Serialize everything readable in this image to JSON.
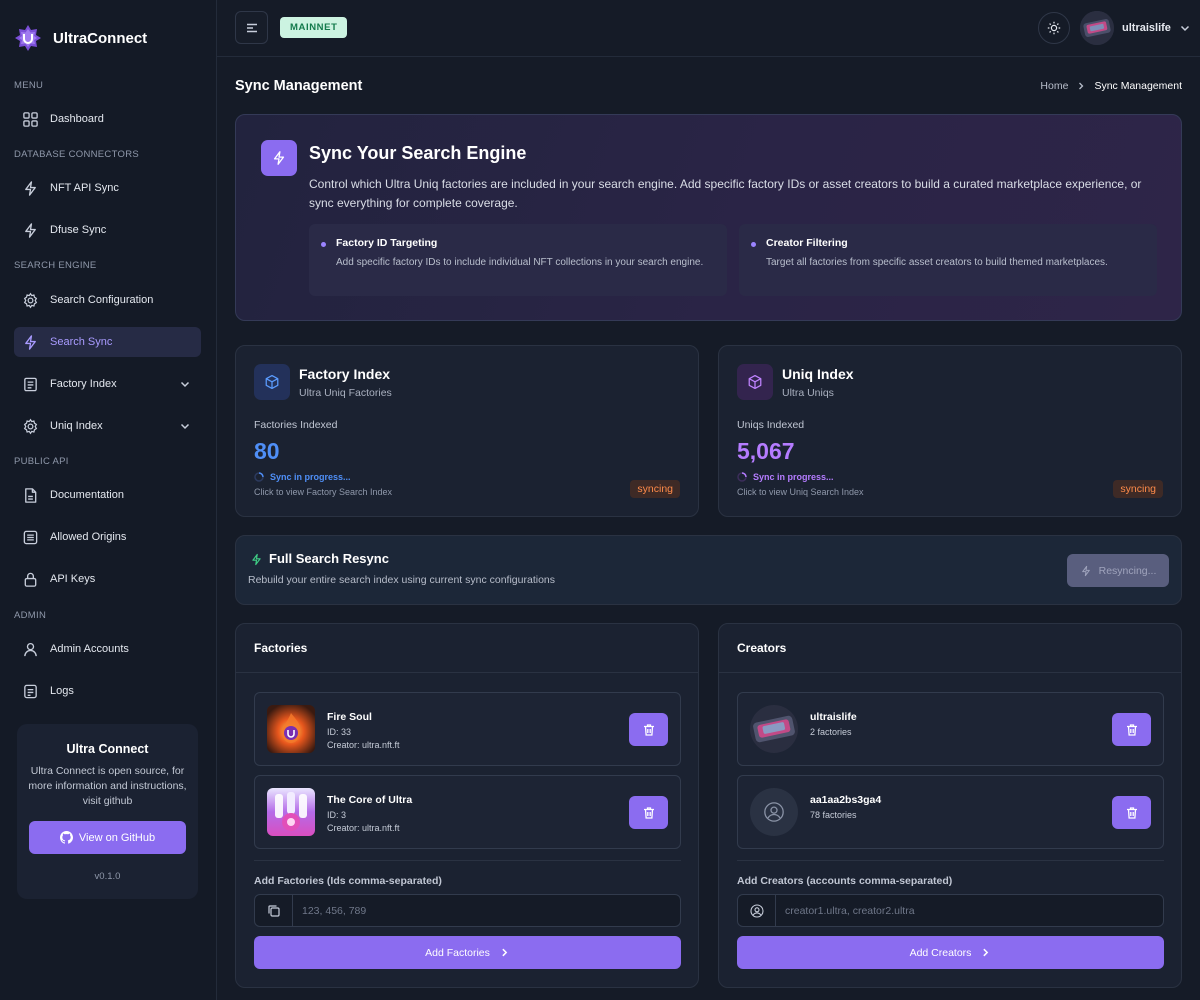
{
  "brand": {
    "name": "UltraConnect"
  },
  "sidebar": {
    "sections": [
      {
        "title": "MENU"
      },
      {
        "title": "DATABASE CONNECTORS"
      },
      {
        "title": "SEARCH ENGINE"
      },
      {
        "title": "PUBLIC API"
      },
      {
        "title": "ADMIN"
      }
    ],
    "items": [
      {
        "label": "Dashboard",
        "icon": "grid-icon"
      },
      {
        "label": "NFT API Sync",
        "icon": "bolt-icon"
      },
      {
        "label": "Dfuse Sync",
        "icon": "bolt-icon"
      },
      {
        "label": "Search Configuration",
        "icon": "gear-icon"
      },
      {
        "label": "Search Sync",
        "icon": "bolt-icon",
        "active": true
      },
      {
        "label": "Factory Index",
        "icon": "document-icon",
        "expandable": true
      },
      {
        "label": "Uniq Index",
        "icon": "gear-icon",
        "expandable": true
      },
      {
        "label": "Documentation",
        "icon": "file-icon"
      },
      {
        "label": "Allowed Origins",
        "icon": "list-icon"
      },
      {
        "label": "API Keys",
        "icon": "lock-icon"
      },
      {
        "label": "Admin Accounts",
        "icon": "user-icon"
      },
      {
        "label": "Logs",
        "icon": "log-icon"
      }
    ],
    "promo": {
      "title": "Ultra Connect",
      "text": "Ultra Connect is open source, for more information and instructions, visit github",
      "button": "View on GitHub",
      "version": "v0.1.0"
    }
  },
  "header": {
    "network": "MAINNET",
    "user": "ultraislife"
  },
  "page": {
    "title": "Sync Management",
    "breadcrumb": [
      "Home",
      "Sync Management"
    ]
  },
  "hero": {
    "title": "Sync Your Search Engine",
    "description": "Control which Ultra Uniq factories are included in your search engine. Add specific factory IDs or asset creators to build a curated marketplace experience, or sync everything for complete coverage.",
    "features": [
      {
        "title": "Factory ID Targeting",
        "desc": "Add specific factory IDs to include individual NFT collections in your search engine."
      },
      {
        "title": "Creator Filtering",
        "desc": "Target all factories from specific asset creators to build themed marketplaces."
      }
    ]
  },
  "indexes": [
    {
      "title": "Factory Index",
      "subtitle": "Ultra Uniq Factories",
      "label": "Factories Indexed",
      "value": "80",
      "progress": "Sync in progress...",
      "hint": "Click to view Factory Search Index",
      "status": "syncing",
      "color": "#4f8ff7"
    },
    {
      "title": "Uniq Index",
      "subtitle": "Ultra Uniqs",
      "label": "Uniqs Indexed",
      "value": "5,067",
      "progress": "Sync in progress...",
      "hint": "Click to view Uniq Search Index",
      "status": "syncing",
      "color": "#b57cff"
    }
  ],
  "resync": {
    "title": "Full Search Resync",
    "desc": "Rebuild your entire search index using current sync configurations",
    "button": "Resyncing..."
  },
  "factories": {
    "title": "Factories",
    "items": [
      {
        "name": "Fire Soul",
        "id": "ID: 33",
        "creator": "Creator: ultra.nft.ft"
      },
      {
        "name": "The Core of Ultra",
        "id": "ID: 3",
        "creator": "Creator: ultra.nft.ft"
      }
    ],
    "add_label": "Add Factories (Ids comma-separated)",
    "placeholder": "123, 456, 789",
    "add_button": "Add Factories"
  },
  "creators": {
    "title": "Creators",
    "items": [
      {
        "name": "ultraislife",
        "count": "2 factories"
      },
      {
        "name": "aa1aa2bs3ga4",
        "count": "78 factories"
      }
    ],
    "add_label": "Add Creators (accounts comma-separated)",
    "placeholder": "creator1.ultra, creator2.ultra",
    "add_button": "Add Creators"
  }
}
